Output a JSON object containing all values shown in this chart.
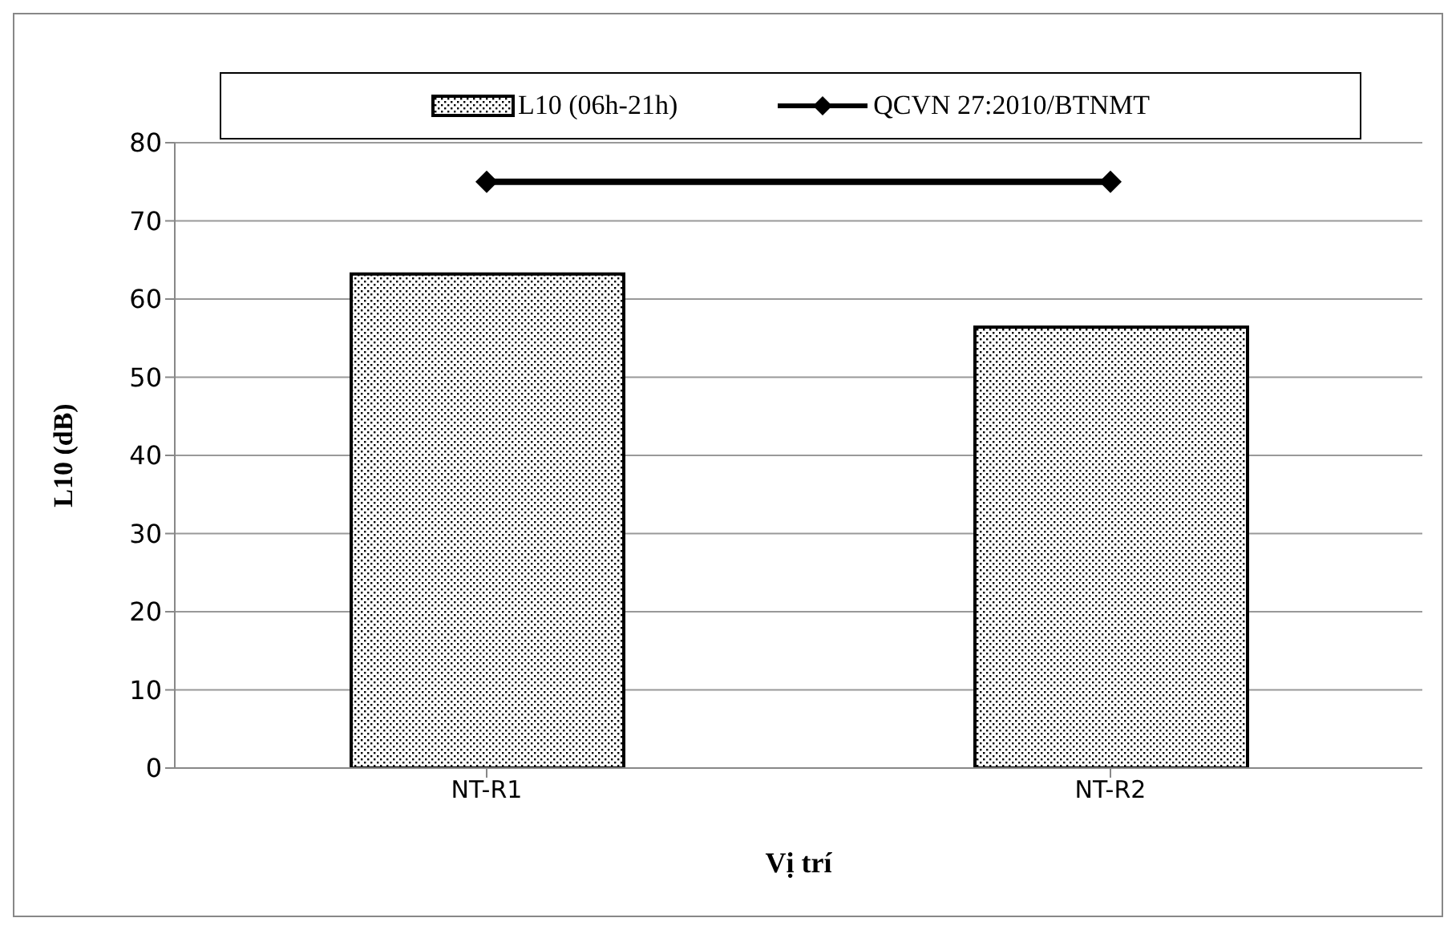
{
  "chart_data": {
    "type": "bar",
    "xlabel": "Vị trí",
    "ylabel": "L10 (dB)",
    "categories": [
      "NT-R1",
      "NT-R2"
    ],
    "series": [
      {
        "name": "L10 (06h-21h)",
        "color": "#000000",
        "values": [
          63.2,
          56.4
        ]
      },
      {
        "name": "QCVN 27:2010/BTNMT",
        "type": "line",
        "color": "#000000",
        "values": [
          75,
          75
        ],
        "marker": "diamond"
      }
    ],
    "ylim": [
      0,
      80
    ],
    "yticks": [
      0,
      10,
      20,
      30,
      40,
      50,
      60,
      70,
      80
    ],
    "grid": "y",
    "legend": "top"
  }
}
